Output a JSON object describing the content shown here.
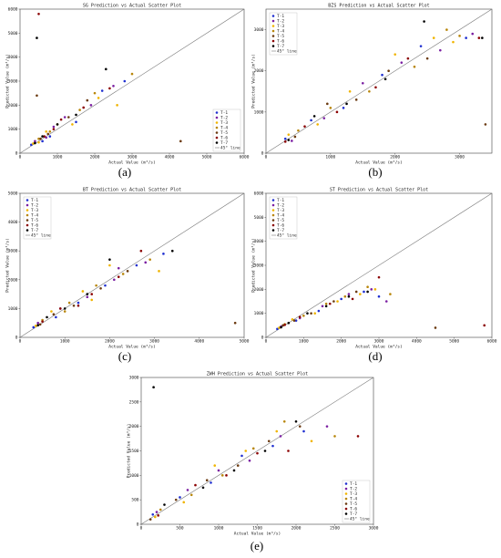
{
  "chart_data": [
    {
      "type": "scatter",
      "title": "SG Prediction vs Actual Scatter Plot",
      "panel_label": "(a)",
      "x_label": "Actual Value (m³/s)",
      "y_label": "Predicted Value (m³/s)",
      "xlim": [
        0,
        6000
      ],
      "ylim": [
        0,
        6000
      ],
      "xticks": [
        0,
        1000,
        2000,
        3000,
        4000,
        5000,
        6000
      ],
      "yticks": [
        0,
        1000,
        2000,
        3000,
        4000,
        5000,
        6000
      ],
      "legend": "lower right",
      "reference_line": "45° line",
      "series": [
        {
          "name": "T-1",
          "color": "#1f2fd0",
          "x": [
            300,
            800,
            1500,
            2200,
            2800,
            600
          ],
          "values": [
            350,
            700,
            1300,
            2600,
            3000,
            500
          ]
        },
        {
          "name": "T-2",
          "color": "#7b1fa2",
          "x": [
            400,
            900,
            1200,
            1900,
            2500,
            700
          ],
          "values": [
            500,
            1100,
            1500,
            2000,
            2800,
            650
          ]
        },
        {
          "name": "T-3",
          "color": "#f0b400",
          "x": [
            350,
            700,
            1400,
            2100,
            2600,
            500
          ],
          "values": [
            400,
            900,
            1200,
            2300,
            2000,
            450
          ]
        },
        {
          "name": "T-4",
          "color": "#b8860b",
          "x": [
            500,
            1000,
            1600,
            2000,
            3000,
            800
          ],
          "values": [
            600,
            1200,
            1800,
            2500,
            3300,
            900
          ]
        },
        {
          "name": "T-5",
          "color": "#6b3a10",
          "x": [
            450,
            750,
            1300,
            1800,
            4300,
            550
          ],
          "values": [
            2400,
            800,
            1500,
            2200,
            500,
            600
          ]
        },
        {
          "name": "T-6",
          "color": "#8b0000",
          "x": [
            500,
            900,
            1100,
            1700,
            2400,
            650
          ],
          "values": [
            5800,
            1000,
            1400,
            1900,
            2700,
            700
          ]
        },
        {
          "name": "T-7",
          "color": "#000000",
          "x": [
            450,
            600,
            1000,
            1500,
            2300,
            400
          ],
          "values": [
            4800,
            700,
            1200,
            1600,
            3500,
            420
          ]
        }
      ]
    },
    {
      "type": "scatter",
      "title": "BZS Prediction vs Actual Scatter Plot",
      "panel_label": "(b)",
      "x_label": "Actual Value (m³/s)",
      "y_label": "Predicted Value (m³/s)",
      "xlim": [
        0,
        3500
      ],
      "ylim": [
        0,
        3500
      ],
      "xticks": [
        0,
        1000,
        2000,
        3000
      ],
      "yticks": [
        0,
        1000,
        2000,
        3000
      ],
      "legend": "upper left",
      "reference_line": "45° line",
      "series": [
        {
          "name": "T-1",
          "color": "#1f2fd0",
          "x": [
            300,
            700,
            1200,
            1800,
            2400,
            3100
          ],
          "values": [
            350,
            800,
            1100,
            1900,
            2600,
            2800
          ]
        },
        {
          "name": "T-2",
          "color": "#7b1fa2",
          "x": [
            400,
            900,
            1500,
            2100,
            2700,
            3200
          ],
          "values": [
            300,
            850,
            1700,
            2200,
            2500,
            2900
          ]
        },
        {
          "name": "T-3",
          "color": "#f0b400",
          "x": [
            350,
            800,
            1300,
            2000,
            2600,
            2900
          ],
          "values": [
            450,
            700,
            1500,
            2400,
            2800,
            2700
          ]
        },
        {
          "name": "T-4",
          "color": "#b8860b",
          "x": [
            500,
            1000,
            1600,
            2300,
            2800,
            3000
          ],
          "values": [
            550,
            1100,
            1500,
            2100,
            3000,
            2850
          ]
        },
        {
          "name": "T-5",
          "color": "#6b3a10",
          "x": [
            450,
            950,
            1400,
            1900,
            2500,
            3400
          ],
          "values": [
            400,
            1200,
            1300,
            2000,
            2300,
            700
          ]
        },
        {
          "name": "T-6",
          "color": "#8b0000",
          "x": [
            300,
            600,
            1100,
            1700,
            2200,
            3300
          ],
          "values": [
            280,
            650,
            1000,
            1600,
            2300,
            2800
          ]
        },
        {
          "name": "T-7",
          "color": "#000000",
          "x": [
            350,
            750,
            1250,
            1850,
            2450,
            3350
          ],
          "values": [
            320,
            900,
            1200,
            1800,
            3200,
            2800
          ]
        }
      ]
    },
    {
      "type": "scatter",
      "title": "BT Prediction vs Actual Scatter Plot",
      "panel_label": "(c)",
      "x_label": "Actual Value (m³/s)",
      "y_label": "Predicted Value (m³/s)",
      "xlim": [
        0,
        5000
      ],
      "ylim": [
        0,
        5000
      ],
      "xticks": [
        0,
        1000,
        2000,
        3000,
        4000,
        5000
      ],
      "yticks": [
        0,
        1000,
        2000,
        3000,
        4000,
        5000
      ],
      "legend": "upper left",
      "reference_line": "45° line",
      "series": [
        {
          "name": "T-1",
          "color": "#1f2fd0",
          "x": [
            300,
            800,
            1300,
            1900,
            2600,
            3200
          ],
          "values": [
            350,
            700,
            1200,
            1800,
            2500,
            2900
          ]
        },
        {
          "name": "T-2",
          "color": "#7b1fa2",
          "x": [
            400,
            900,
            1500,
            2100,
            2800,
            2200
          ],
          "values": [
            500,
            1000,
            1400,
            2000,
            2600,
            2400
          ]
        },
        {
          "name": "T-3",
          "color": "#f0b400",
          "x": [
            350,
            700,
            1400,
            2000,
            3100,
            1600
          ],
          "values": [
            400,
            900,
            1600,
            2500,
            2300,
            1300
          ]
        },
        {
          "name": "T-4",
          "color": "#b8860b",
          "x": [
            500,
            1100,
            1700,
            2300,
            2900,
            1000
          ],
          "values": [
            600,
            1200,
            1800,
            2200,
            2700,
            900
          ]
        },
        {
          "name": "T-5",
          "color": "#6b3a10",
          "x": [
            450,
            750,
            1200,
            1800,
            4800,
            2400
          ],
          "values": [
            450,
            800,
            1100,
            1700,
            500,
            2300
          ]
        },
        {
          "name": "T-6",
          "color": "#8b0000",
          "x": [
            500,
            900,
            1600,
            2200,
            2700,
            1300
          ],
          "values": [
            550,
            1000,
            1500,
            2100,
            3000,
            1100
          ]
        },
        {
          "name": "T-7",
          "color": "#000000",
          "x": [
            400,
            600,
            1000,
            1500,
            2000,
            3400
          ],
          "values": [
            420,
            700,
            1000,
            1500,
            2700,
            3000
          ]
        }
      ]
    },
    {
      "type": "scatter",
      "title": "ST Prediction vs Actual Scatter Plot",
      "panel_label": "(d)",
      "x_label": "Actual Value (m³/s)",
      "y_label": "Predicted Value (m³/s)",
      "xlim": [
        0,
        6000
      ],
      "ylim": [
        0,
        6000
      ],
      "xticks": [
        0,
        1000,
        2000,
        3000,
        4000,
        5000,
        6000
      ],
      "yticks": [
        0,
        1000,
        2000,
        3000,
        4000,
        5000,
        6000
      ],
      "legend": "upper left",
      "reference_line": "45° line",
      "series": [
        {
          "name": "T-1",
          "color": "#1f2fd0",
          "x": [
            300,
            800,
            1400,
            2000,
            2600,
            3000
          ],
          "values": [
            350,
            700,
            1100,
            1600,
            1900,
            1700
          ]
        },
        {
          "name": "T-2",
          "color": "#7b1fa2",
          "x": [
            400,
            900,
            1500,
            2200,
            2800,
            3200
          ],
          "values": [
            450,
            800,
            1300,
            1800,
            2000,
            1500
          ]
        },
        {
          "name": "T-3",
          "color": "#f0b400",
          "x": [
            350,
            700,
            1300,
            1900,
            2500,
            2900
          ],
          "values": [
            400,
            750,
            1000,
            1500,
            1800,
            2000
          ]
        },
        {
          "name": "T-4",
          "color": "#b8860b",
          "x": [
            500,
            1000,
            1600,
            2100,
            2700,
            3300
          ],
          "values": [
            550,
            900,
            1400,
            1700,
            2100,
            1800
          ]
        },
        {
          "name": "T-5",
          "color": "#6b3a10",
          "x": [
            450,
            750,
            1200,
            1800,
            4500,
            2400
          ],
          "values": [
            500,
            700,
            1000,
            1500,
            400,
            1900
          ]
        },
        {
          "name": "T-6",
          "color": "#8b0000",
          "x": [
            500,
            900,
            1700,
            2300,
            3000,
            5800
          ],
          "values": [
            520,
            850,
            1400,
            1600,
            2500,
            500
          ]
        },
        {
          "name": "T-7",
          "color": "#000000",
          "x": [
            400,
            600,
            1100,
            1600,
            2200,
            2700
          ],
          "values": [
            420,
            600,
            1000,
            1300,
            1700,
            1900
          ]
        }
      ]
    },
    {
      "type": "scatter",
      "title": "ZWH Prediction vs Actual Scatter Plot",
      "panel_label": "(e)",
      "x_label": "Actual Value (m³/s)",
      "y_label": "Predicted Value (m³/s)",
      "xlim": [
        0,
        3000
      ],
      "ylim": [
        0,
        3000
      ],
      "xticks": [
        0,
        500,
        1000,
        1500,
        2000,
        2500,
        3000
      ],
      "yticks": [
        0,
        500,
        1000,
        1500,
        2000,
        2500,
        3000
      ],
      "legend": "lower right",
      "reference_line": "45° line",
      "series": [
        {
          "name": "T-1",
          "color": "#1f2fd0",
          "x": [
            150,
            500,
            900,
            1300,
            1700,
            2100
          ],
          "values": [
            200,
            550,
            850,
            1400,
            1600,
            1900
          ]
        },
        {
          "name": "T-2",
          "color": "#7b1fa2",
          "x": [
            200,
            600,
            1000,
            1400,
            1800,
            2400
          ],
          "values": [
            250,
            700,
            1100,
            1300,
            1800,
            2000
          ]
        },
        {
          "name": "T-3",
          "color": "#f0b400",
          "x": [
            180,
            550,
            950,
            1350,
            1750,
            2200
          ],
          "values": [
            150,
            450,
            1200,
            1500,
            1900,
            1700
          ]
        },
        {
          "name": "T-4",
          "color": "#b8860b",
          "x": [
            250,
            650,
            1050,
            1450,
            1850,
            2500
          ],
          "values": [
            300,
            600,
            1000,
            1550,
            2100,
            1800
          ]
        },
        {
          "name": "T-5",
          "color": "#6b3a10",
          "x": [
            120,
            450,
            850,
            1250,
            1650,
            2050
          ],
          "values": [
            100,
            500,
            900,
            1200,
            1700,
            2000
          ]
        },
        {
          "name": "T-6",
          "color": "#8b0000",
          "x": [
            220,
            700,
            1100,
            1500,
            1900,
            2800
          ],
          "values": [
            180,
            800,
            1000,
            1450,
            1500,
            1800
          ]
        },
        {
          "name": "T-7",
          "color": "#000000",
          "x": [
            160,
            300,
            800,
            1200,
            1600,
            2000
          ],
          "values": [
            2800,
            400,
            750,
            1100,
            1500,
            2100
          ]
        }
      ]
    }
  ]
}
